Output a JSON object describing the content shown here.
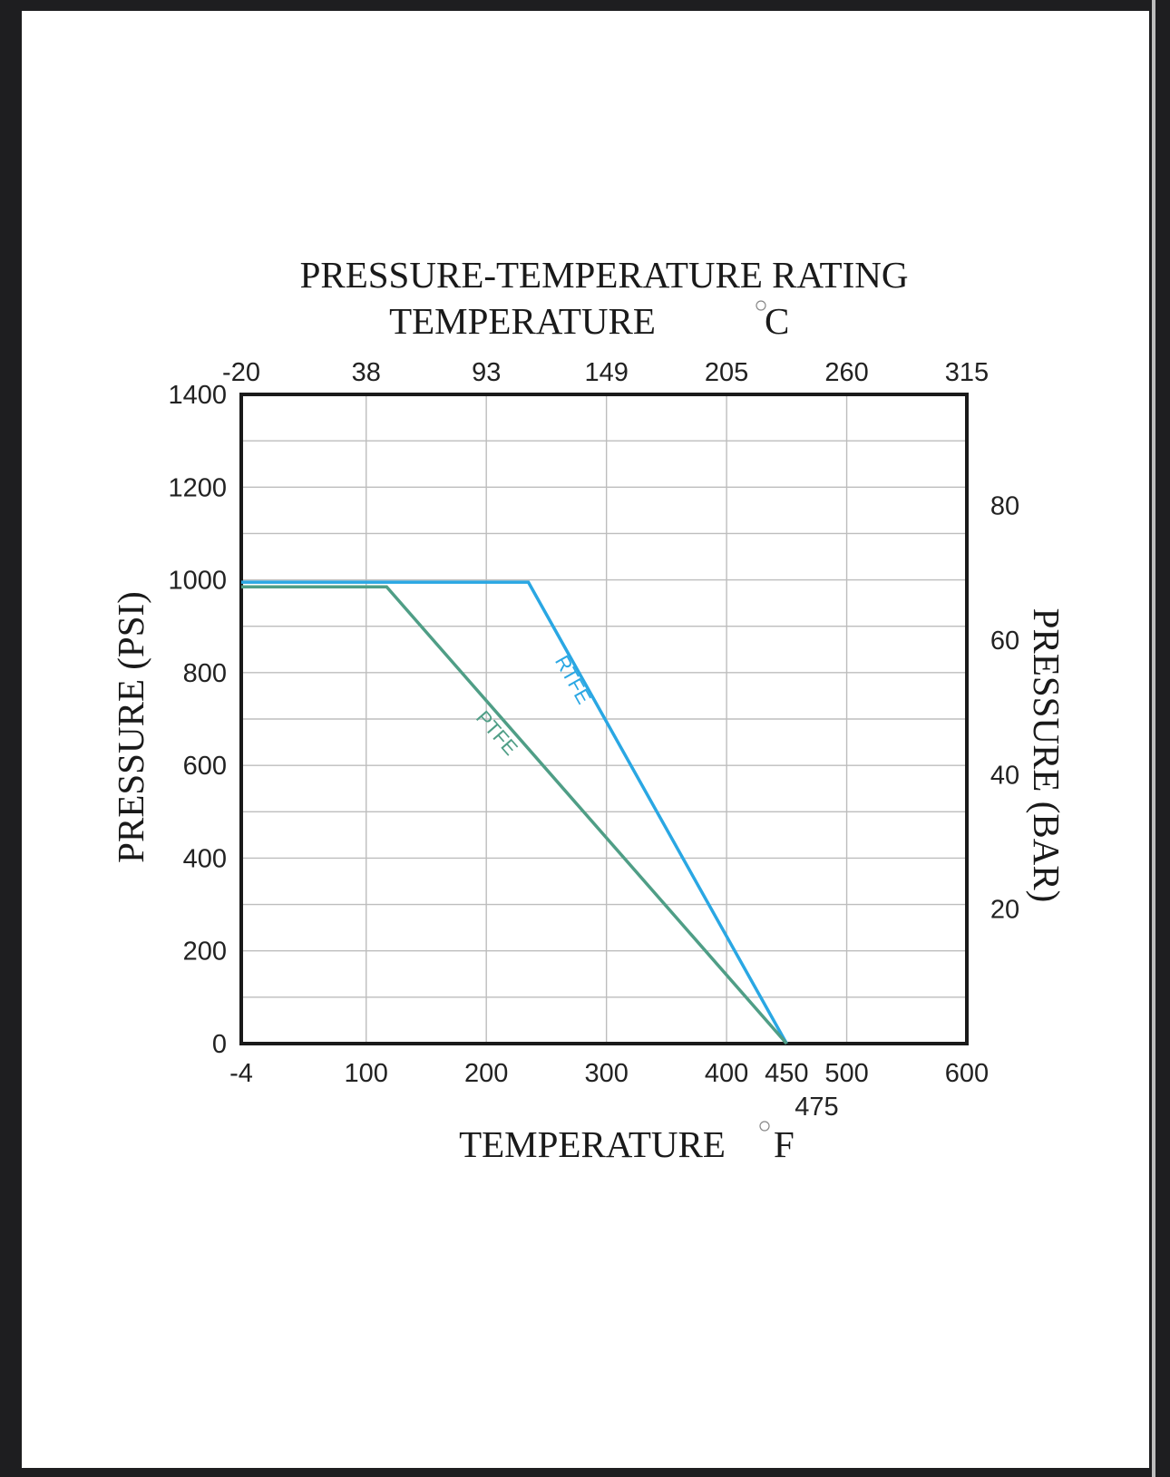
{
  "colors": {
    "rtfe": "#2aa7e3",
    "ptfe": "#4f9e86",
    "grid": "#bdbdbd",
    "frame": "#1a1a1a",
    "background": "#1e1e20",
    "paper": "#ffffff"
  },
  "chart_data": {
    "type": "line",
    "title": "PRESSURE-TEMPERATURE RATING",
    "top_axis_label": "TEMPERATURE °C",
    "top_axis_label_text": "TEMPERATURE",
    "top_axis_label_unit": "C",
    "xlabel": "TEMPERATURE °F",
    "xlabel_text": "TEMPERATURE",
    "xlabel_unit": "F",
    "ylabel": "PRESSURE (PSI)",
    "ylabel_right": "PRESSURE (BAR)",
    "xlim": [
      -4,
      600
    ],
    "ylim": [
      0,
      1400
    ],
    "grid": true,
    "x_ticks": [
      {
        "value": -4,
        "label": "-4"
      },
      {
        "value": 100,
        "label": "100"
      },
      {
        "value": 200,
        "label": "200"
      },
      {
        "value": 300,
        "label": "300"
      },
      {
        "value": 400,
        "label": "400"
      },
      {
        "value": 450,
        "label": "450"
      },
      {
        "value": 500,
        "label": "500"
      },
      {
        "value": 600,
        "label": "600"
      }
    ],
    "x_extra_label": {
      "value": 475,
      "label": "475"
    },
    "top_ticks": [
      {
        "value": -4,
        "label": "-20"
      },
      {
        "value": 100,
        "label": "38"
      },
      {
        "value": 200,
        "label": "93"
      },
      {
        "value": 300,
        "label": "149"
      },
      {
        "value": 400,
        "label": "205"
      },
      {
        "value": 500,
        "label": "260"
      },
      {
        "value": 600,
        "label": "315"
      }
    ],
    "y_ticks": [
      {
        "value": 0,
        "label": "0"
      },
      {
        "value": 200,
        "label": "200"
      },
      {
        "value": 400,
        "label": "400"
      },
      {
        "value": 600,
        "label": "600"
      },
      {
        "value": 800,
        "label": "800"
      },
      {
        "value": 1000,
        "label": "1000"
      },
      {
        "value": 1200,
        "label": "1200"
      },
      {
        "value": 1400,
        "label": "1400"
      }
    ],
    "y_right_ticks": [
      {
        "psi": 290,
        "label": "20"
      },
      {
        "psi": 580,
        "label": "40"
      },
      {
        "psi": 870,
        "label": "60"
      },
      {
        "psi": 1160,
        "label": "80"
      }
    ],
    "x_grid": [
      100,
      200,
      300,
      400,
      500
    ],
    "y_grid": [
      100,
      200,
      300,
      400,
      500,
      600,
      700,
      800,
      900,
      1000,
      1100,
      1200,
      1300
    ],
    "series": [
      {
        "name": "RTFE",
        "color": "#2aa7e3",
        "points": [
          [
            -4,
            995
          ],
          [
            235,
            995
          ],
          [
            450,
            0
          ]
        ]
      },
      {
        "name": "PTFE",
        "color": "#4f9e86",
        "points": [
          [
            -4,
            985
          ],
          [
            117,
            985
          ],
          [
            450,
            0
          ]
        ]
      }
    ],
    "series_labels": [
      {
        "series": "RTFE",
        "text": "RTFE",
        "x": 262,
        "y": 770
      },
      {
        "series": "PTFE",
        "text": "PTFE",
        "x": 200,
        "y": 650
      }
    ]
  }
}
